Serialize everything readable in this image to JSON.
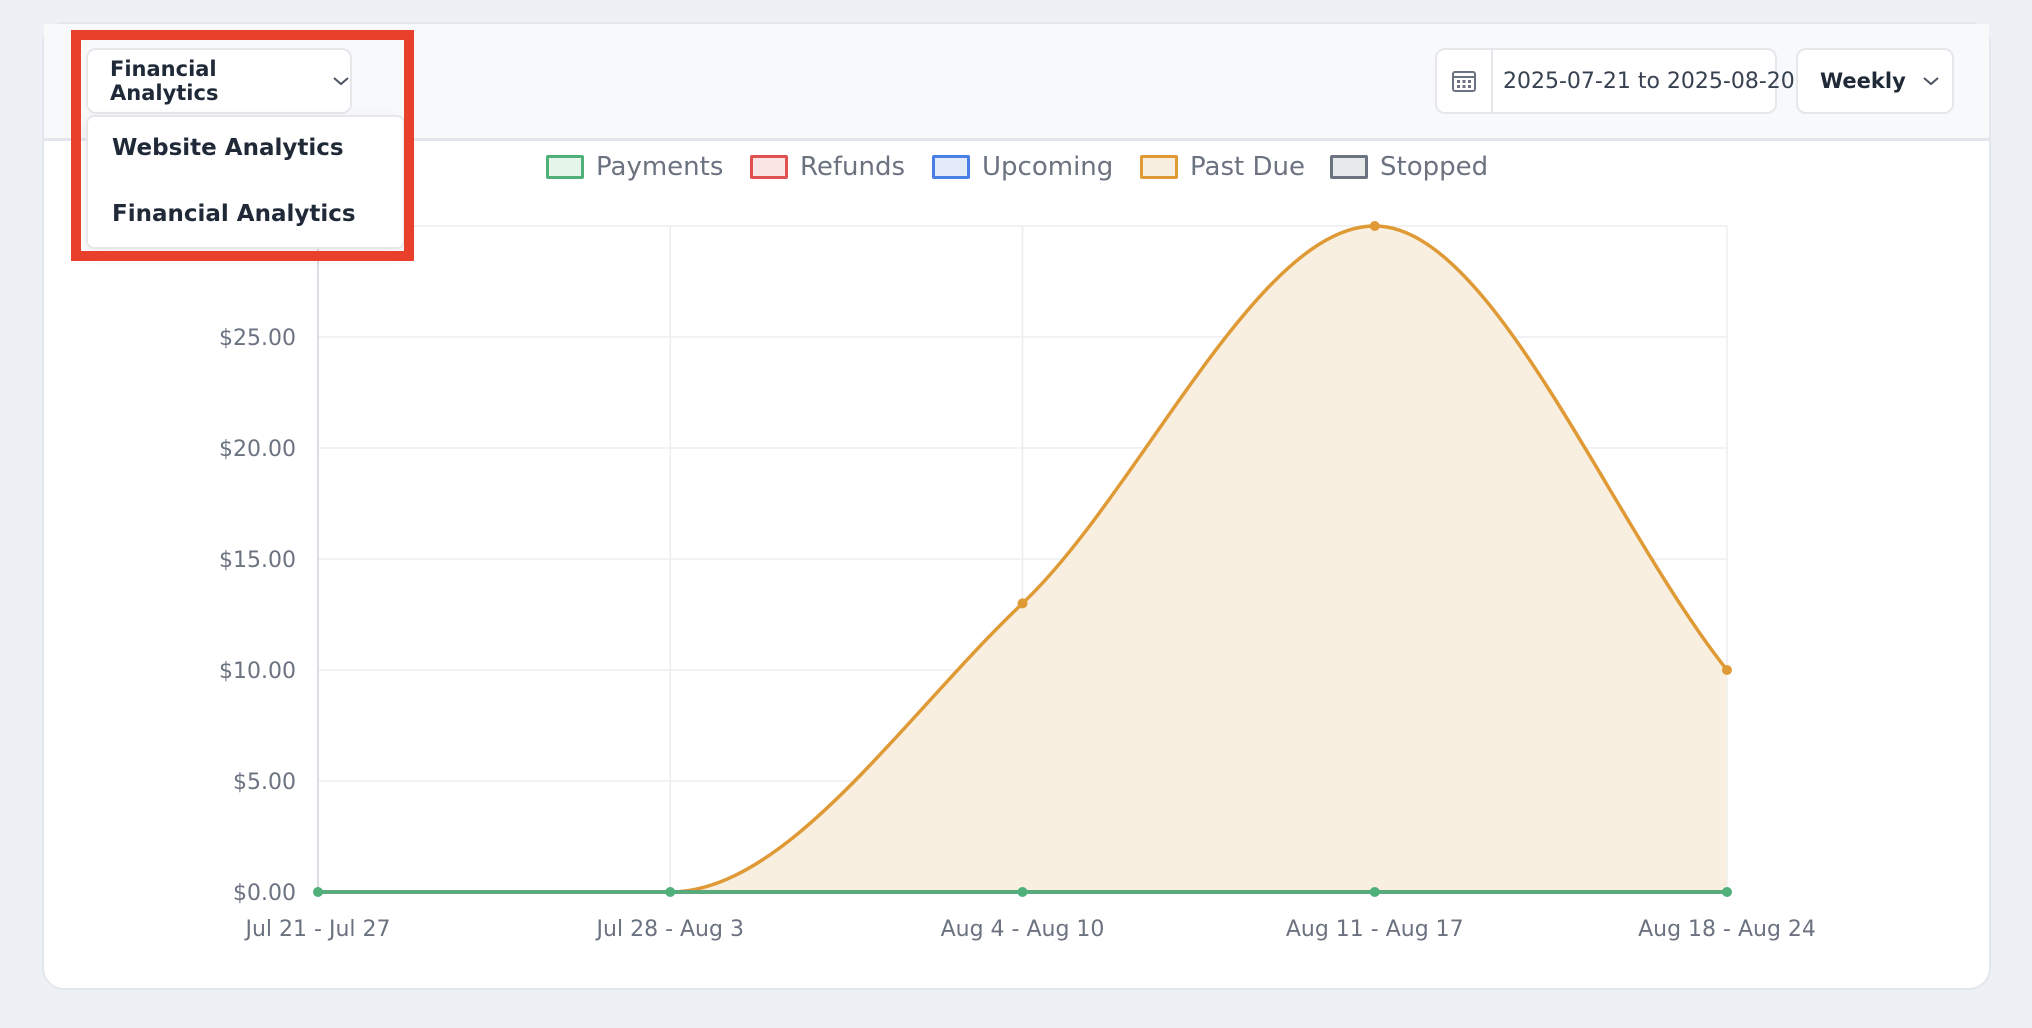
{
  "header": {
    "view_selector": {
      "label": "Financial Analytics",
      "icon": "chevron-down-icon"
    },
    "view_menu": {
      "options": [
        "Website Analytics",
        "Financial Analytics"
      ]
    },
    "date_range": {
      "icon": "calendar-icon",
      "value": "2025-07-21 to 2025-08-20"
    },
    "period_selector": {
      "label": "Weekly",
      "icon": "chevron-down-icon"
    }
  },
  "chart_data": {
    "type": "line",
    "categories": [
      "Jul 21 - Jul 27",
      "Jul 28 - Aug 3",
      "Aug 4 - Aug 10",
      "Aug 11 - Aug 17",
      "Aug 18 - Aug 24"
    ],
    "ylim": [
      0,
      30
    ],
    "yticks": [
      "$0.00",
      "$5.00",
      "$10.00",
      "$15.00",
      "$20.00",
      "$25.00"
    ],
    "grid": true,
    "legend_position": "top",
    "series": [
      {
        "name": "Payments",
        "color": "#4fb07a",
        "fill": "#e4f5ea",
        "values": [
          0,
          0,
          0,
          0,
          0
        ],
        "filled": false
      },
      {
        "name": "Refunds",
        "color": "#e05252",
        "fill": "#fbe4e4",
        "values": [
          0,
          0,
          0,
          0,
          0
        ],
        "filled": false
      },
      {
        "name": "Upcoming",
        "color": "#4a7fe6",
        "fill": "#e3ebfb",
        "values": [
          0,
          0,
          0,
          0,
          0
        ],
        "filled": false
      },
      {
        "name": "Past Due",
        "color": "#df9a36",
        "fill": "#f9efe0",
        "values": [
          0,
          0,
          13,
          30,
          10
        ],
        "filled": true
      },
      {
        "name": "Stopped",
        "color": "#6b7280",
        "fill": "#e8e9eb",
        "values": [
          0,
          0,
          0,
          0,
          0
        ],
        "filled": false
      }
    ]
  }
}
